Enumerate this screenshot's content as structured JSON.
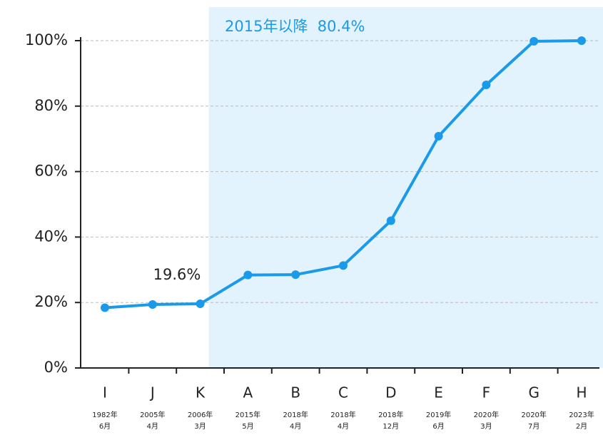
{
  "chart_data": {
    "type": "line",
    "categories": [
      "I",
      "J",
      "K",
      "A",
      "B",
      "C",
      "D",
      "E",
      "F",
      "G",
      "H"
    ],
    "category_dates": [
      [
        "1982年",
        "6月"
      ],
      [
        "2005年",
        "4月"
      ],
      [
        "2006年",
        "3月"
      ],
      [
        "2015年",
        "5月"
      ],
      [
        "2018年",
        "4月"
      ],
      [
        "2018年",
        "4月"
      ],
      [
        "2018年",
        "12月"
      ],
      [
        "2019年",
        "6月"
      ],
      [
        "2020年",
        "3月"
      ],
      [
        "2020年",
        "7月"
      ],
      [
        "2023年",
        "2月"
      ]
    ],
    "series": [
      {
        "color": "#1a9ae8",
        "values": [
          18.4,
          19.4,
          19.6,
          28.4,
          28.5,
          31.3,
          45.0,
          70.8,
          86.5,
          99.8,
          100
        ]
      }
    ],
    "ylim": [
      0,
      100
    ],
    "yticks": [
      {
        "value": 0,
        "label": "0%"
      },
      {
        "value": 20,
        "label": "20%"
      },
      {
        "value": 40,
        "label": "40%"
      },
      {
        "value": 60,
        "label": "60%"
      },
      {
        "value": 80,
        "label": "80%"
      },
      {
        "value": 100,
        "label": "100%"
      }
    ],
    "grid": true,
    "annotations": [
      "19.6%",
      "2015年以降  80.4%"
    ]
  }
}
